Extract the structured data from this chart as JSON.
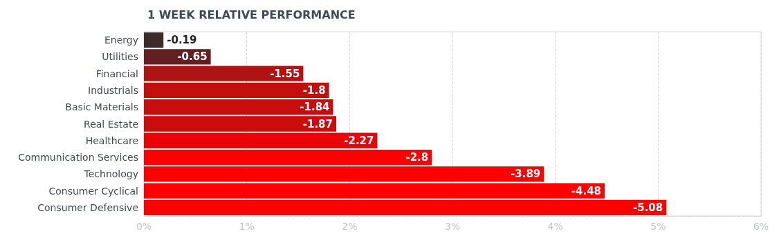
{
  "chart_data": {
    "type": "bar",
    "orientation": "horizontal",
    "title": "1 WEEK RELATIVE PERFORMANCE",
    "categories": [
      "Energy",
      "Utilities",
      "Financial",
      "Industrials",
      "Basic Materials",
      "Real Estate",
      "Healthcare",
      "Communication Services",
      "Technology",
      "Consumer Cyclical",
      "Consumer Defensive"
    ],
    "values": [
      -0.19,
      -0.65,
      -1.55,
      -1.8,
      -1.84,
      -1.87,
      -2.27,
      -2.8,
      -3.89,
      -4.48,
      -5.08
    ],
    "data_labels": true,
    "colors": [
      "#3e2a2a",
      "#632022",
      "#b01313",
      "#c30e0e",
      "#c70d0d",
      "#cb0c0c",
      "#e90505",
      "#fb0101",
      "#ff0000",
      "#ff0000",
      "#ff0000"
    ],
    "xlim": [
      0,
      -6
    ],
    "xticks": [
      {
        "value": 0,
        "label": "0%"
      },
      {
        "value": -1,
        "label": "1%"
      },
      {
        "value": -2,
        "label": "2%"
      },
      {
        "value": -3,
        "label": "3%"
      },
      {
        "value": -4,
        "label": "4%"
      },
      {
        "value": -5,
        "label": "5%"
      },
      {
        "value": -6,
        "label": "6%"
      }
    ],
    "grid": "x"
  }
}
